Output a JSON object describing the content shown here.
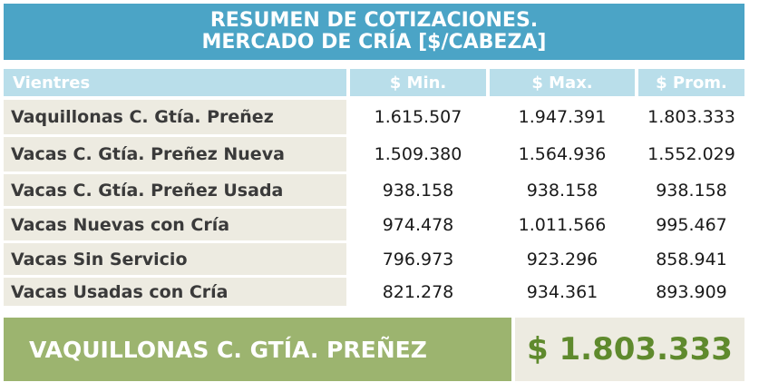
{
  "header": {
    "line1": "RESUMEN DE COTIZACIONES.",
    "line2": "MERCADO DE CRÍA [$/CABEZA]"
  },
  "table": {
    "columns": [
      "Vientres",
      "$ Min.",
      "$ Max.",
      "$ Prom."
    ],
    "rows": [
      [
        "Vaquillonas C. Gtía. Preñez",
        "1.615.507",
        "1.947.391",
        "1.803.333"
      ],
      [
        "Vacas C. Gtía. Preñez Nueva",
        "1.509.380",
        "1.564.936",
        "1.552.029"
      ],
      [
        "Vacas C. Gtía. Preñez Usada",
        "938.158",
        "938.158",
        "938.158"
      ],
      [
        "Vacas Nuevas con Cría",
        "974.478",
        "1.011.566",
        "995.467"
      ],
      [
        "Vacas Sin Servicio",
        "796.973",
        "923.296",
        "858.941"
      ],
      [
        "Vacas Usadas con Cría",
        "821.278",
        "934.361",
        "893.909"
      ]
    ]
  },
  "highlight": {
    "label": "VAQUILLONAS C. GTÍA. PREÑEZ",
    "value": "$  1.803.333"
  },
  "colors": {
    "header_bg": "#4ba4c6",
    "column_header_bg": "#b9deea",
    "row_bg": "#edebe1",
    "banner_bg": "#9cb46f",
    "banner_value": "#5f8a2d"
  }
}
